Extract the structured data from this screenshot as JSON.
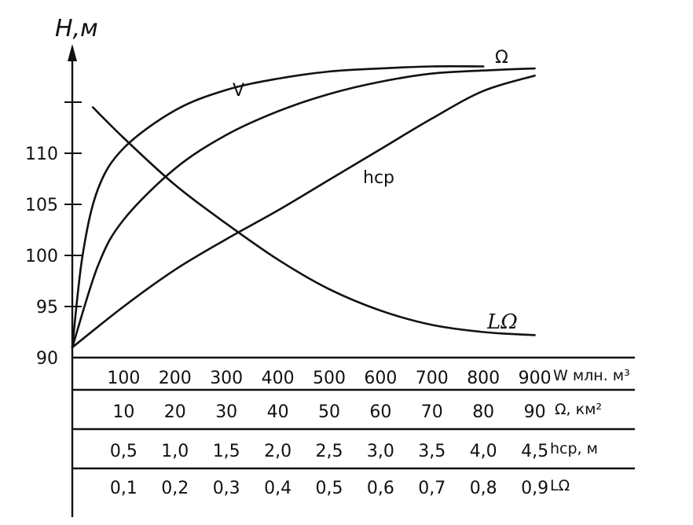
{
  "chart_data": {
    "type": "line",
    "ylabel": "H,м",
    "ylim": [
      90,
      117
    ],
    "y_ticks": [
      90,
      95,
      100,
      105,
      110
    ],
    "secondary_scales": [
      {
        "name": "W  млн. м³",
        "ticks": [
          "100",
          "200",
          "300",
          "400",
          "500",
          "600",
          "700",
          "800",
          "900"
        ]
      },
      {
        "name": "Ω,  км²",
        "ticks": [
          "10",
          "20",
          "30",
          "40",
          "50",
          "60",
          "70",
          "80",
          "90"
        ]
      },
      {
        "name": "hср, м",
        "ticks": [
          "0,5",
          "1,0",
          "1,5",
          "2,0",
          "2,5",
          "3,0",
          "3,5",
          "4,0",
          "4,5"
        ]
      },
      {
        "name": "LΩ",
        "ticks": [
          "0,1",
          "0,2",
          "0,3",
          "0,4",
          "0,5",
          "0,6",
          "0,7",
          "0,8",
          "0,9"
        ]
      }
    ],
    "series": [
      {
        "name": "V",
        "color": "#111111",
        "points": [
          [
            0,
            91
          ],
          [
            0.2,
            100
          ],
          [
            0.5,
            106.5
          ],
          [
            1.0,
            110.5
          ],
          [
            2.0,
            114.2
          ],
          [
            3.0,
            116.2
          ],
          [
            4.0,
            117.3
          ],
          [
            5.0,
            118.0
          ],
          [
            6.0,
            118.3
          ],
          [
            7.0,
            118.5
          ],
          [
            8.0,
            118.5
          ]
        ]
      },
      {
        "name": "Ω",
        "color": "#111111",
        "points": [
          [
            0,
            91
          ],
          [
            0.5,
            99
          ],
          [
            1.0,
            103.5
          ],
          [
            2.0,
            108.5
          ],
          [
            3.0,
            111.8
          ],
          [
            4.0,
            114.1
          ],
          [
            5.0,
            115.8
          ],
          [
            6.0,
            117.0
          ],
          [
            7.0,
            117.8
          ],
          [
            8.0,
            118.1
          ],
          [
            9.0,
            118.3
          ]
        ]
      },
      {
        "name": "hср",
        "color": "#111111",
        "points": [
          [
            0,
            91
          ],
          [
            1.0,
            95
          ],
          [
            2.0,
            98.6
          ],
          [
            3.0,
            101.6
          ],
          [
            4.0,
            104.4
          ],
          [
            5.0,
            107.4
          ],
          [
            6.0,
            110.4
          ],
          [
            7.0,
            113.4
          ],
          [
            8.0,
            116.1
          ],
          [
            9.0,
            117.6
          ]
        ]
      },
      {
        "name": "LΩ",
        "color": "#111111",
        "points": [
          [
            0.4,
            114.5
          ],
          [
            1.0,
            111.5
          ],
          [
            2.0,
            106.9
          ],
          [
            3.0,
            103.1
          ],
          [
            4.0,
            99.6
          ],
          [
            5.0,
            96.7
          ],
          [
            6.0,
            94.6
          ],
          [
            7.0,
            93.2
          ],
          [
            8.0,
            92.5
          ],
          [
            9.0,
            92.2
          ]
        ]
      }
    ]
  }
}
